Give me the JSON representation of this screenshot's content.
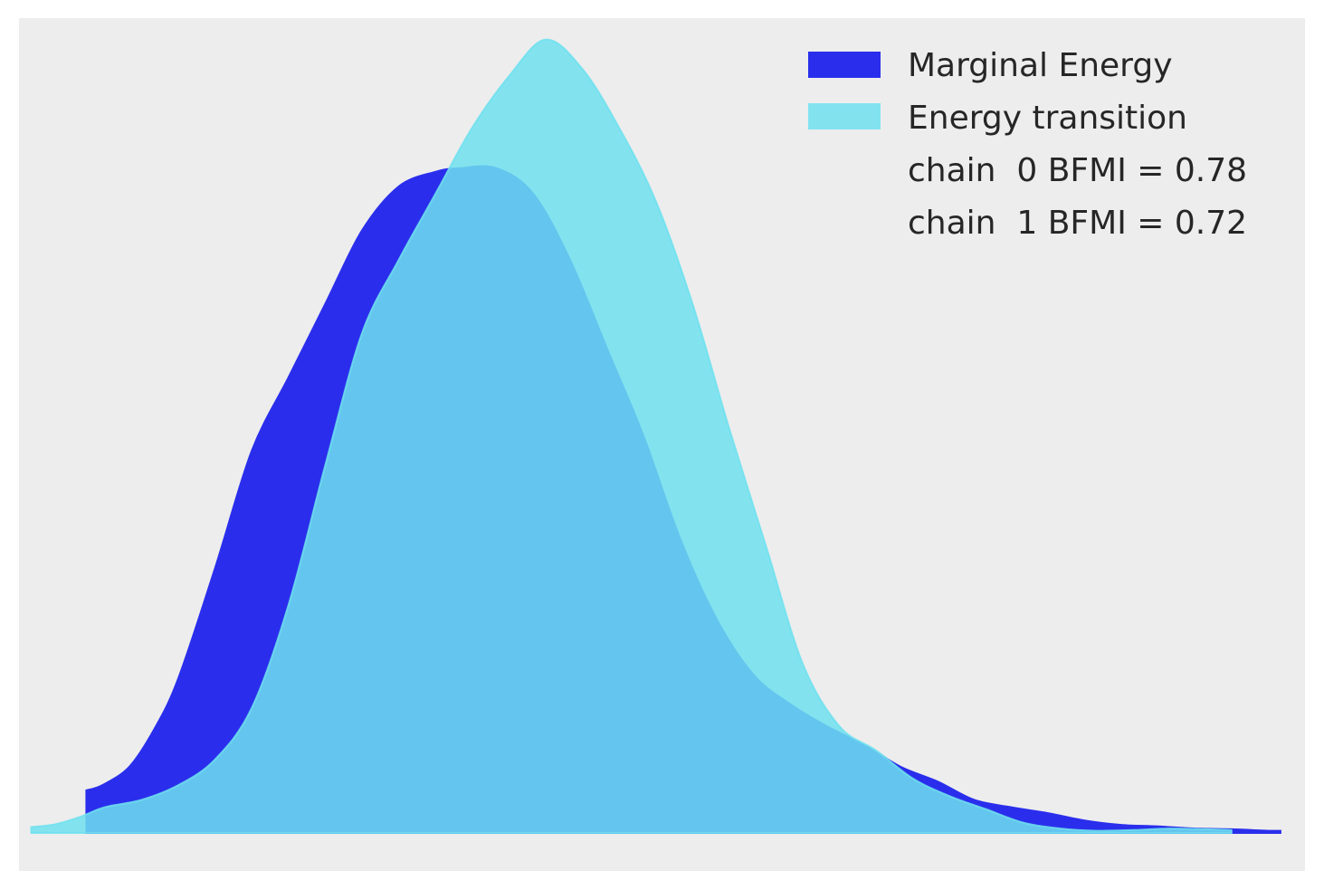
{
  "chart_data": {
    "type": "area",
    "title": "",
    "xlabel": "",
    "ylabel": "",
    "grid": false,
    "axes_visible": false,
    "background": "#ededed",
    "legend_position": "top-right",
    "xlim": [
      -0.03,
      1.02
    ],
    "ylim": [
      0,
      1.06
    ],
    "series": [
      {
        "name": "Marginal Energy",
        "color": "#2a2eec",
        "opacity": 1.0,
        "x": [
          0.025,
          0.038,
          0.06,
          0.08,
          0.1,
          0.13,
          0.16,
          0.19,
          0.22,
          0.25,
          0.28,
          0.31,
          0.33,
          0.36,
          0.39,
          0.42,
          0.45,
          0.48,
          0.51,
          0.54,
          0.57,
          0.6,
          0.63,
          0.66,
          0.69,
          0.72,
          0.75,
          0.78,
          0.81,
          0.84,
          0.87,
          0.9,
          0.93,
          0.96,
          0.99,
          1.0
        ],
        "y": [
          0.058,
          0.065,
          0.09,
          0.14,
          0.21,
          0.36,
          0.52,
          0.62,
          0.72,
          0.82,
          0.88,
          0.9,
          0.905,
          0.905,
          0.87,
          0.78,
          0.66,
          0.54,
          0.4,
          0.29,
          0.215,
          0.175,
          0.145,
          0.12,
          0.09,
          0.07,
          0.045,
          0.035,
          0.027,
          0.017,
          0.011,
          0.009,
          0.006,
          0.005,
          0.003,
          0.003
        ]
      },
      {
        "name": "Energy transition",
        "color": "#6ee1ee",
        "opacity": 0.85,
        "x": [
          -0.02,
          0.0,
          0.02,
          0.04,
          0.07,
          0.1,
          0.13,
          0.16,
          0.19,
          0.22,
          0.25,
          0.28,
          0.31,
          0.34,
          0.37,
          0.4,
          0.43,
          0.46,
          0.49,
          0.52,
          0.55,
          0.58,
          0.61,
          0.64,
          0.67,
          0.7,
          0.73,
          0.76,
          0.79,
          0.82,
          0.85,
          0.88,
          0.91,
          0.94,
          0.96
        ],
        "y": [
          0.008,
          0.012,
          0.022,
          0.035,
          0.045,
          0.065,
          0.1,
          0.17,
          0.31,
          0.5,
          0.68,
          0.78,
          0.87,
          0.96,
          1.03,
          1.08,
          1.04,
          0.96,
          0.86,
          0.72,
          0.55,
          0.39,
          0.23,
          0.145,
          0.112,
          0.074,
          0.05,
          0.032,
          0.014,
          0.006,
          0.003,
          0.004,
          0.006,
          0.005,
          0.004
        ]
      }
    ],
    "legend": {
      "entries": [
        "Marginal Energy",
        "Energy transition"
      ],
      "annotations": [
        "chain  0 BFMI = 0.78",
        "chain  1 BFMI = 0.72"
      ]
    }
  }
}
